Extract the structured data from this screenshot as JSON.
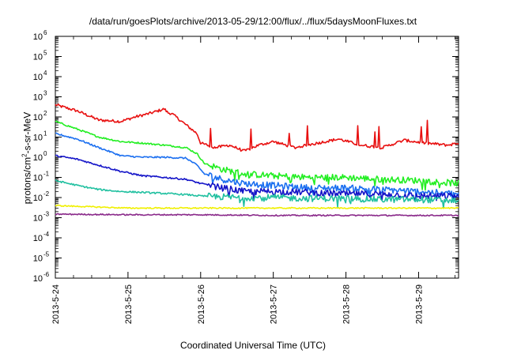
{
  "chart_data": {
    "type": "line",
    "title": "/data/run/goesPlots/archive/2013-05-29/12:00/flux/../flux/5daysMoonFluxes.txt",
    "xlabel": "Coordinated Universal Time (UTC)",
    "ylabel_base": "protons/cm",
    "ylabel_sup": "2",
    "ylabel_rest": "-s-sr-MeV",
    "x_ticks": [
      "2013-5-24",
      "2013-5-25",
      "2013-5-26",
      "2013-5-27",
      "2013-5-28",
      "2013-5-29"
    ],
    "x_range_days": [
      0,
      5.55
    ],
    "y_scale": "log",
    "y_tick_exponents": [
      -6,
      -5,
      -4,
      -3,
      -2,
      -1,
      0,
      1,
      2,
      3,
      4,
      5,
      6
    ],
    "y_tick_base": "10",
    "ylim": [
      1e-06,
      1000000.0
    ],
    "legend": "none",
    "grid": false,
    "colors": {
      "red": "#e81010",
      "green": "#22ee22",
      "blue": "#1b6ff0",
      "navy": "#1414c8",
      "teal": "#20c0a0",
      "yellow": "#f0f000",
      "purple": "#8a2a8a"
    },
    "series": [
      {
        "color": "red",
        "x": [
          0,
          0.3,
          0.6,
          0.9,
          1.1,
          1.3,
          1.5,
          1.55,
          1.6,
          1.8,
          1.95,
          2.0,
          2.2,
          2.4,
          2.6,
          2.8,
          3.0,
          3.3,
          3.6,
          3.9,
          4.2,
          4.5,
          4.8,
          5.1,
          5.4,
          5.55
        ],
        "y": [
          400,
          200,
          70,
          60,
          100,
          150,
          250,
          160,
          150,
          40,
          15,
          5,
          3,
          4,
          2,
          4,
          6,
          3,
          5,
          8,
          4,
          3,
          7,
          5,
          4,
          5
        ]
      },
      {
        "color": "green",
        "x": [
          0,
          0.3,
          0.6,
          0.9,
          1.2,
          1.5,
          1.8,
          1.95,
          2.05,
          2.3,
          2.6,
          3.0,
          3.5,
          4.0,
          4.5,
          5.0,
          5.55
        ],
        "y": [
          60,
          25,
          10,
          6,
          5,
          4,
          3,
          1.5,
          0.5,
          0.25,
          0.15,
          0.12,
          0.1,
          0.1,
          0.08,
          0.07,
          0.05
        ]
      },
      {
        "color": "blue",
        "x": [
          0,
          0.3,
          0.6,
          0.9,
          1.2,
          1.5,
          1.8,
          1.95,
          2.05,
          2.3,
          2.6,
          3.0,
          3.5,
          4.0,
          4.5,
          5.0,
          5.55
        ],
        "y": [
          15,
          8,
          3,
          1.2,
          1,
          1,
          0.9,
          0.4,
          0.15,
          0.08,
          0.05,
          0.04,
          0.03,
          0.03,
          0.025,
          0.02,
          0.015
        ]
      },
      {
        "color": "navy",
        "x": [
          0,
          0.3,
          0.6,
          0.9,
          1.2,
          1.5,
          1.8,
          2.0,
          2.3,
          2.6,
          3.0,
          3.5,
          4.0,
          4.5,
          5.0,
          5.55
        ],
        "y": [
          1.2,
          0.8,
          0.4,
          0.2,
          0.12,
          0.1,
          0.08,
          0.05,
          0.03,
          0.02,
          0.02,
          0.018,
          0.015,
          0.015,
          0.012,
          0.012
        ]
      },
      {
        "color": "teal",
        "x": [
          0,
          0.3,
          0.6,
          0.9,
          1.2,
          1.5,
          1.8,
          2.0,
          2.5,
          3.0,
          3.5,
          4.0,
          4.5,
          5.0,
          5.55
        ],
        "y": [
          0.07,
          0.04,
          0.025,
          0.02,
          0.018,
          0.016,
          0.014,
          0.012,
          0.01,
          0.01,
          0.009,
          0.009,
          0.008,
          0.008,
          0.007
        ]
      },
      {
        "color": "yellow",
        "x": [
          0,
          1,
          2,
          3,
          4,
          5,
          5.55
        ],
        "y": [
          0.004,
          0.003,
          0.003,
          0.003,
          0.003,
          0.003,
          0.003
        ]
      },
      {
        "color": "purple",
        "x": [
          0,
          1,
          2,
          3,
          4,
          5,
          5.55
        ],
        "y": [
          0.0015,
          0.0014,
          0.0014,
          0.0013,
          0.0013,
          0.0013,
          0.0013
        ]
      }
    ]
  }
}
